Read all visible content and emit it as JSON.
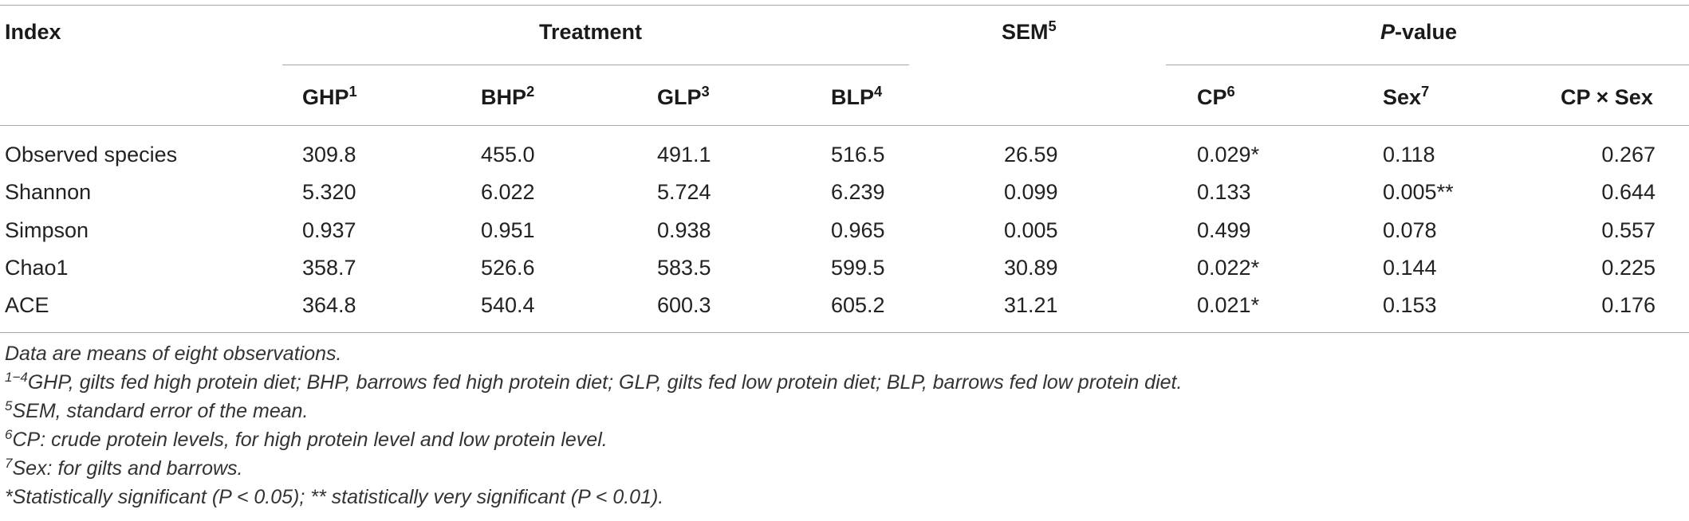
{
  "header": {
    "index": "Index",
    "treatment": "Treatment",
    "sem": "SEM",
    "sem_sup": "5",
    "pvalue_p": "P",
    "pvalue_rest": "-value",
    "columns": [
      {
        "label": "GHP",
        "sup": "1"
      },
      {
        "label": "BHP",
        "sup": "2"
      },
      {
        "label": "GLP",
        "sup": "3"
      },
      {
        "label": "BLP",
        "sup": "4"
      },
      {
        "label": "CP",
        "sup": "6"
      },
      {
        "label": "Sex",
        "sup": "7"
      },
      {
        "label": "CP × Sex",
        "sup": ""
      }
    ]
  },
  "rows": [
    {
      "index": "Observed species",
      "ghp": "309.8",
      "bhp": "455.0",
      "glp": "491.1",
      "blp": "516.5",
      "sem": "26.59",
      "cp": "0.029*",
      "sex": "0.118",
      "cpxsex": "0.267"
    },
    {
      "index": "Shannon",
      "ghp": "5.320",
      "bhp": "6.022",
      "glp": "5.724",
      "blp": "6.239",
      "sem": "0.099",
      "cp": "0.133",
      "sex": "0.005**",
      "cpxsex": "0.644"
    },
    {
      "index": "Simpson",
      "ghp": "0.937",
      "bhp": "0.951",
      "glp": "0.938",
      "blp": "0.965",
      "sem": "0.005",
      "cp": "0.499",
      "sex": "0.078",
      "cpxsex": "0.557"
    },
    {
      "index": "Chao1",
      "ghp": "358.7",
      "bhp": "526.6",
      "glp": "583.5",
      "blp": "599.5",
      "sem": "30.89",
      "cp": "0.022*",
      "sex": "0.144",
      "cpxsex": "0.225"
    },
    {
      "index": "ACE",
      "ghp": "364.8",
      "bhp": "540.4",
      "glp": "600.3",
      "blp": "605.2",
      "sem": "31.21",
      "cp": "0.021*",
      "sex": "0.153",
      "cpxsex": "0.176"
    }
  ],
  "footnotes": {
    "n0": "Data are means of eight observations.",
    "n1_sup": "1−4",
    "n1": "GHP, gilts fed high protein diet; BHP, barrows fed high protein diet; GLP, gilts fed low protein diet; BLP, barrows fed low protein diet.",
    "n2_sup": "5",
    "n2": "SEM, standard error of the mean.",
    "n3_sup": "6",
    "n3": "CP: crude protein levels, for high protein level and low protein level.",
    "n4_sup": "7",
    "n4": "Sex: for gilts and barrows.",
    "n5": "*Statistically significant (P < 0.05); ** statistically very significant (P < 0.01)."
  }
}
